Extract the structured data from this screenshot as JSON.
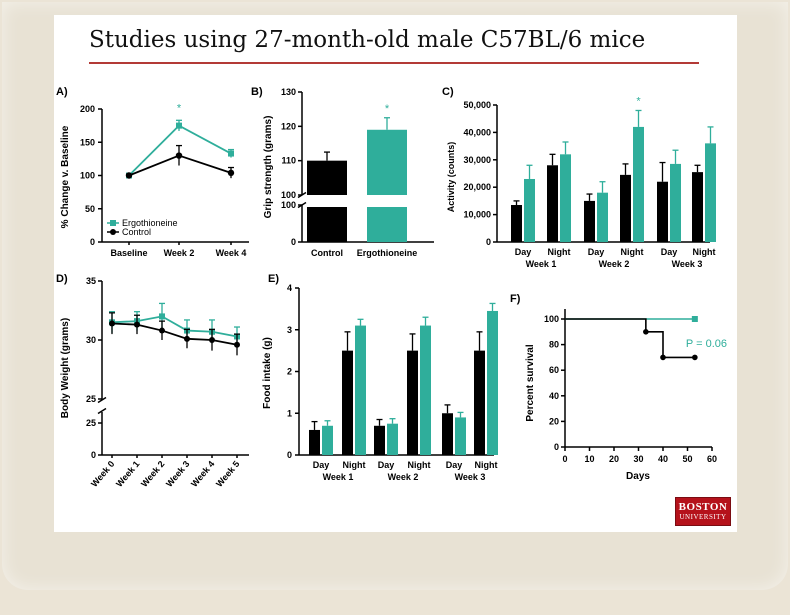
{
  "title": "Studies using 27-month-old male C57BL/6 mice",
  "colors": {
    "ergo": "#2fae9b",
    "control": "#000000",
    "title_rule": "#b33a36"
  },
  "logo": {
    "line1": "BOSTON",
    "line2": "UNIVERSITY"
  },
  "chart_data": [
    {
      "id": "A",
      "letter": "A)",
      "type": "line",
      "ylabel": "% Change v. Baseline",
      "categories": [
        "Baseline",
        "Week 2",
        "Week 4"
      ],
      "ylim": [
        0,
        200
      ],
      "yticks": [
        "0",
        "50",
        "100",
        "150",
        "200"
      ],
      "series": [
        {
          "name": "Ergothioneine",
          "values": [
            100,
            175,
            133
          ]
        },
        {
          "name": "Control",
          "values": [
            100,
            130,
            104
          ]
        }
      ],
      "annotations": [
        {
          "text": "*",
          "category": "Week 2"
        }
      ]
    },
    {
      "id": "B",
      "letter": "B)",
      "type": "bar",
      "ylabel": "Grip strength (grams)",
      "categories": [
        "Control",
        "Ergothioneine"
      ],
      "values": [
        110,
        119
      ],
      "ylim_upper": [
        100,
        130
      ],
      "yticks": [
        "0",
        "100",
        "100",
        "110",
        "120",
        "130"
      ],
      "annotations": [
        {
          "text": "*",
          "category": "Ergothioneine"
        }
      ]
    },
    {
      "id": "C",
      "letter": "C)",
      "type": "bar",
      "ylabel": "Activity (counts)",
      "categories": [
        "Day",
        "Night",
        "Day",
        "Night",
        "Day",
        "Night"
      ],
      "groups": [
        "Week 1",
        "Week 2",
        "Week 3"
      ],
      "ylim": [
        0,
        50000
      ],
      "yticks": [
        "0",
        "10,000",
        "20,000",
        "30,000",
        "40,000",
        "50,000"
      ],
      "series": [
        {
          "name": "Control",
          "values": [
            13500,
            28000,
            15000,
            24500,
            22000,
            25500
          ]
        },
        {
          "name": "Ergothioneine",
          "values": [
            23000,
            32000,
            18000,
            42000,
            28500,
            36000
          ]
        }
      ],
      "annotations": [
        {
          "text": "*",
          "category": "Week 2 Night"
        }
      ]
    },
    {
      "id": "D",
      "letter": "D)",
      "type": "line",
      "ylabel": "Body Weight (grams)",
      "categories": [
        "Week 0",
        "Week 1",
        "Week 2",
        "Week 3",
        "Week 4",
        "Week 5"
      ],
      "ylim_upper": [
        25,
        35
      ],
      "yticks": [
        "0",
        "25",
        "25",
        "30",
        "35"
      ],
      "series": [
        {
          "name": "Ergothioneine",
          "values": [
            31.5,
            31.6,
            32.0,
            30.8,
            30.7,
            30.3
          ]
        },
        {
          "name": "Control",
          "values": [
            31.4,
            31.3,
            30.8,
            30.1,
            30.0,
            29.6
          ]
        }
      ]
    },
    {
      "id": "E",
      "letter": "E)",
      "type": "bar",
      "ylabel": "Food intake (g)",
      "categories": [
        "Day",
        "Night",
        "Day",
        "Night",
        "Day",
        "Night"
      ],
      "groups": [
        "Week 1",
        "Week 2",
        "Week 3"
      ],
      "ylim": [
        0,
        4
      ],
      "yticks": [
        "0",
        "1",
        "2",
        "3",
        "4"
      ],
      "series": [
        {
          "name": "Control",
          "values": [
            0.6,
            2.5,
            0.7,
            2.5,
            1.0,
            2.5
          ]
        },
        {
          "name": "Ergothioneine",
          "values": [
            0.7,
            3.1,
            0.75,
            3.1,
            0.9,
            3.45
          ]
        }
      ]
    },
    {
      "id": "F",
      "letter": "F)",
      "type": "line",
      "ylabel": "Percent survival",
      "xlabel": "Days",
      "xlim": [
        0,
        60
      ],
      "ylim": [
        0,
        100
      ],
      "xticks": [
        "0",
        "10",
        "20",
        "30",
        "40",
        "50",
        "60"
      ],
      "yticks": [
        "0",
        "20",
        "40",
        "60",
        "80",
        "100"
      ],
      "series": [
        {
          "name": "Ergothioneine",
          "steps": [
            [
              0,
              100
            ],
            [
              53,
              100
            ]
          ]
        },
        {
          "name": "Control",
          "steps": [
            [
              0,
              100
            ],
            [
              33,
              100
            ],
            [
              33,
              90
            ],
            [
              40,
              90
            ],
            [
              40,
              70
            ],
            [
              53,
              70
            ]
          ]
        }
      ],
      "annotations": [
        {
          "text": "P = 0.06"
        }
      ]
    }
  ]
}
